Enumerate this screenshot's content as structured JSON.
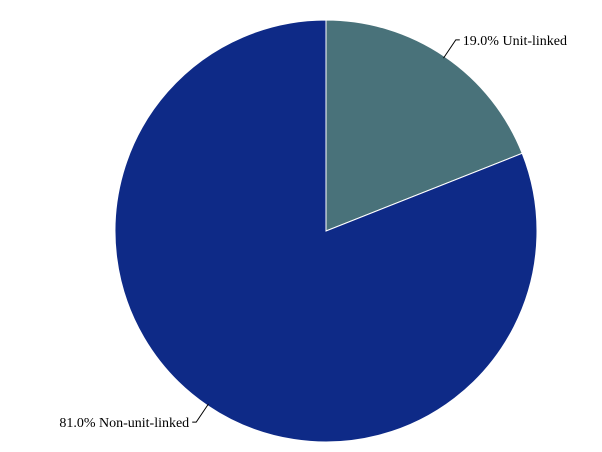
{
  "chart_data": {
    "type": "pie",
    "start": "12 o'clock",
    "direction": "clockwise",
    "slices": [
      {
        "category": "Unit-linked",
        "value": 19.0,
        "label": "19.0% Unit-linked",
        "color": "#49727a"
      },
      {
        "category": "Non-unit-linked",
        "value": 81.0,
        "label": "81.0% Non-unit-linked",
        "color": "#0e2a87"
      }
    ]
  }
}
